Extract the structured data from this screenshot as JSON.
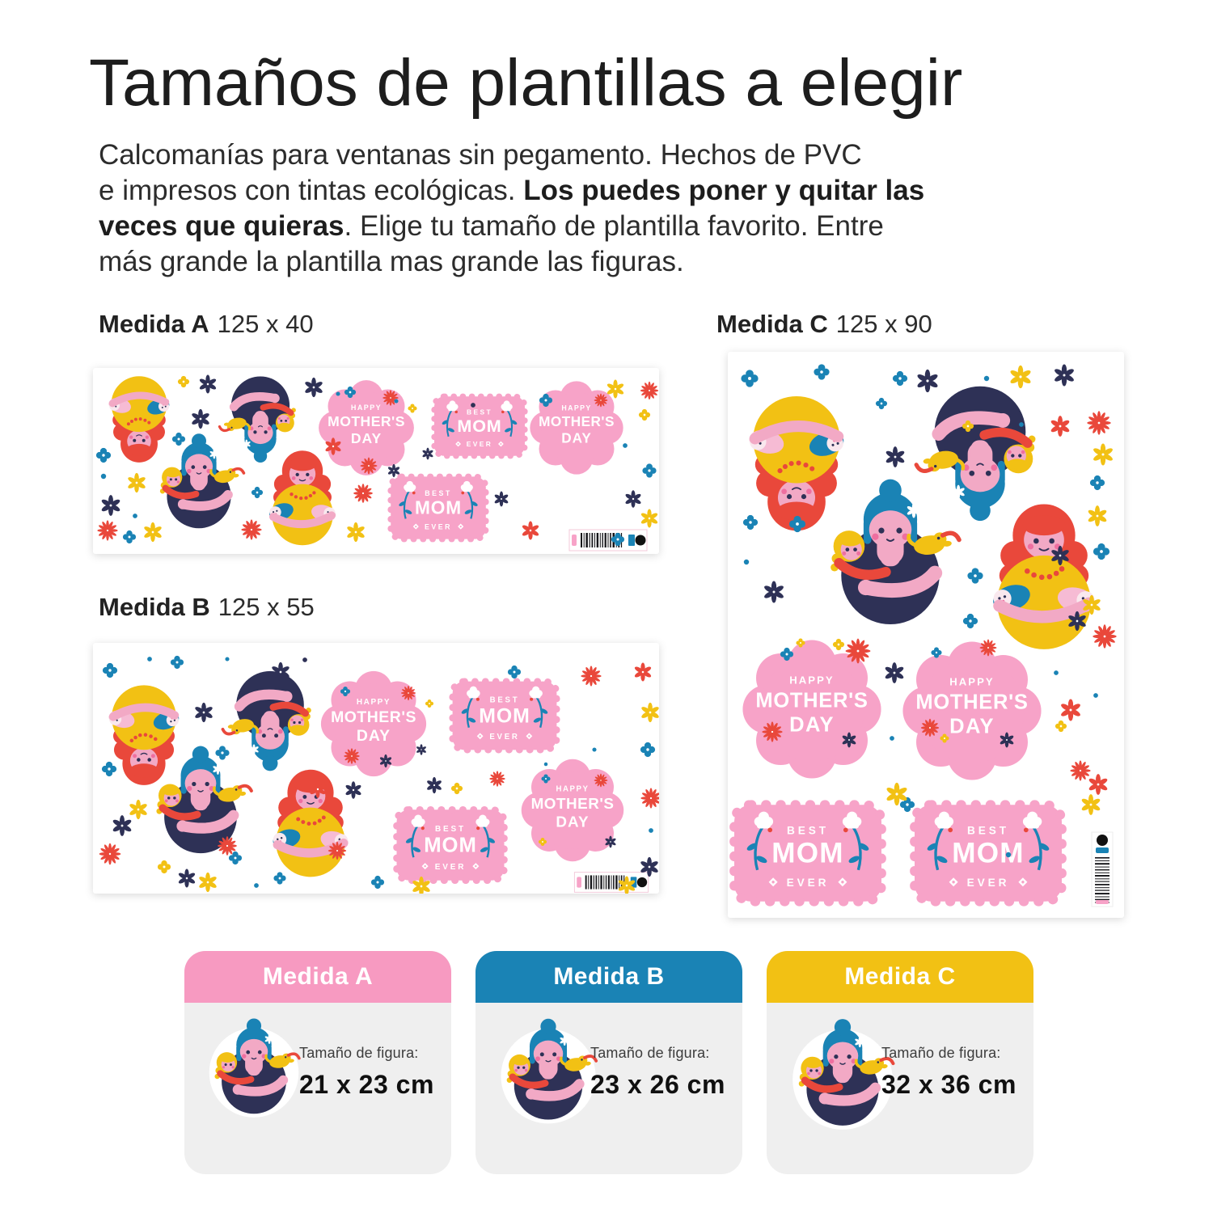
{
  "title": "Tamaños de plantillas a elegir",
  "intro": {
    "line1": "Calcomanías para ventanas sin pegamento. Hechos de PVC",
    "line2_normal": "e impresos con tintas ecológicas. ",
    "line2_bold": "Los puedes poner y quitar las",
    "line3_bold": "veces que quieras",
    "line3_normal": ". Elige tu tamaño de plantilla favorito. Entre",
    "line4": "más grande la plantilla mas grande las figuras."
  },
  "sections": {
    "template_a": {
      "label": "Medida A",
      "dimensions": "125 x 40"
    },
    "template_b": {
      "label": "Medida B",
      "dimensions": "125 x 55"
    },
    "template_c": {
      "label": "Medida C",
      "dimensions": "125 x 90"
    }
  },
  "sticker_sheet": {
    "badge_mothers_day": {
      "line1": "HAPPY",
      "line2": "MOTHER'S",
      "line3": "DAY"
    },
    "badge_best_mom": {
      "line1": "BEST",
      "line2": "MOM",
      "line3": "EVER"
    }
  },
  "size_cards": [
    {
      "label": "Medida A",
      "header_color": "#F79AC1",
      "caption": "Tamaño de figura:",
      "figure_size": "21 x 23 cm"
    },
    {
      "label": "Medida B",
      "header_color": "#1A83B5",
      "caption": "Tamaño de figura:",
      "figure_size": "23 x 26 cm"
    },
    {
      "label": "Medida C",
      "header_color": "#F2C114",
      "caption": "Tamaño de figura:",
      "figure_size": "32 x 36 cm"
    }
  ],
  "colors": {
    "pink": "#F79AC1",
    "badge_pink": "#F7A3C8",
    "blue": "#1A83B5",
    "yellow": "#F2C114",
    "navy": "#2E3156",
    "red": "#E9483B",
    "skin_pink": "#F2A9C5",
    "card_body_gray": "#EFEFEF",
    "text_dark": "#1D1D1D"
  }
}
